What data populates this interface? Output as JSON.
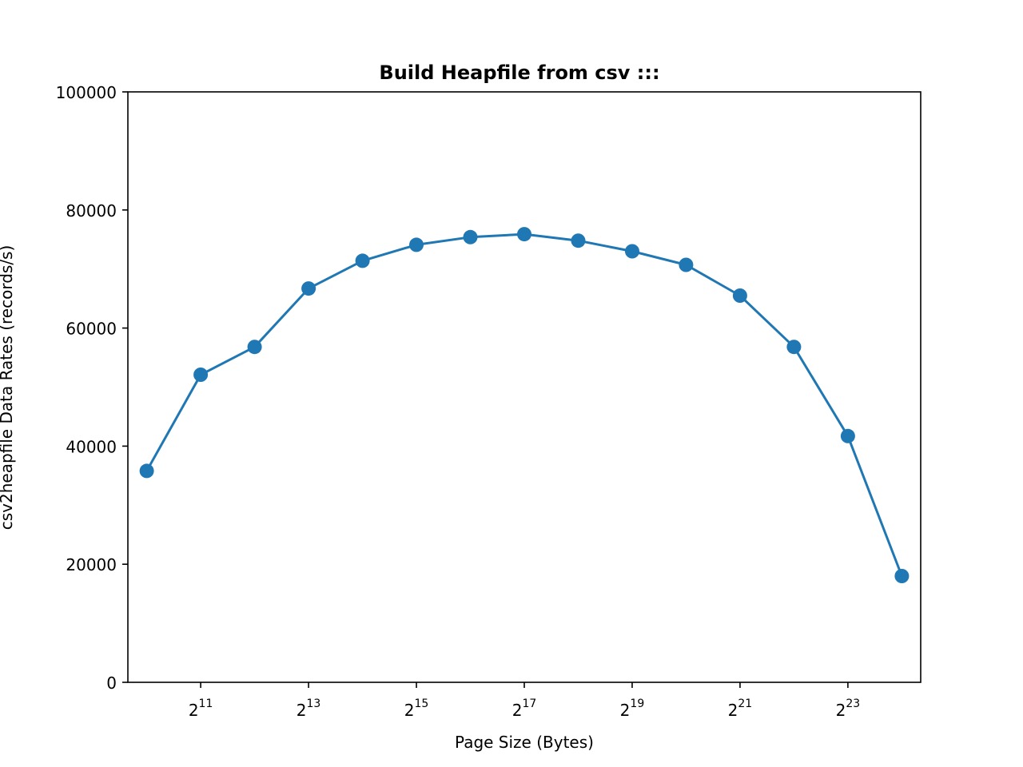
{
  "chart_data": {
    "type": "line",
    "title": "Build Heapfile from csv :::",
    "xlabel": "Page Size (Bytes)",
    "ylabel": "csv2heapfile Data Rates (records/s)",
    "x_scale": "log2",
    "x": [
      1024,
      2048,
      4096,
      8192,
      16384,
      32768,
      65536,
      131072,
      262144,
      524288,
      1048576,
      2097152,
      4194304,
      8388608,
      16777216
    ],
    "series": [
      {
        "values": [
          35800,
          52100,
          56800,
          66700,
          71400,
          74100,
          75400,
          75900,
          74800,
          73000,
          70700,
          65500,
          56800,
          41700,
          18000
        ],
        "color": "#1f77b4"
      }
    ],
    "ylim": [
      0,
      100000
    ],
    "y_ticks": [
      "0",
      "20000",
      "40000",
      "60000",
      "80000",
      "100000"
    ],
    "y_tick_values": [
      0,
      20000,
      40000,
      60000,
      80000,
      100000
    ],
    "x_ticks": [
      {
        "base": "2",
        "exp": "11",
        "value": 2048
      },
      {
        "base": "2",
        "exp": "13",
        "value": 8192
      },
      {
        "base": "2",
        "exp": "15",
        "value": 32768
      },
      {
        "base": "2",
        "exp": "17",
        "value": 131072
      },
      {
        "base": "2",
        "exp": "19",
        "value": 524288
      },
      {
        "base": "2",
        "exp": "21",
        "value": 2097152
      },
      {
        "base": "2",
        "exp": "23",
        "value": 8388608
      }
    ],
    "grid": false,
    "marker": "circle"
  }
}
